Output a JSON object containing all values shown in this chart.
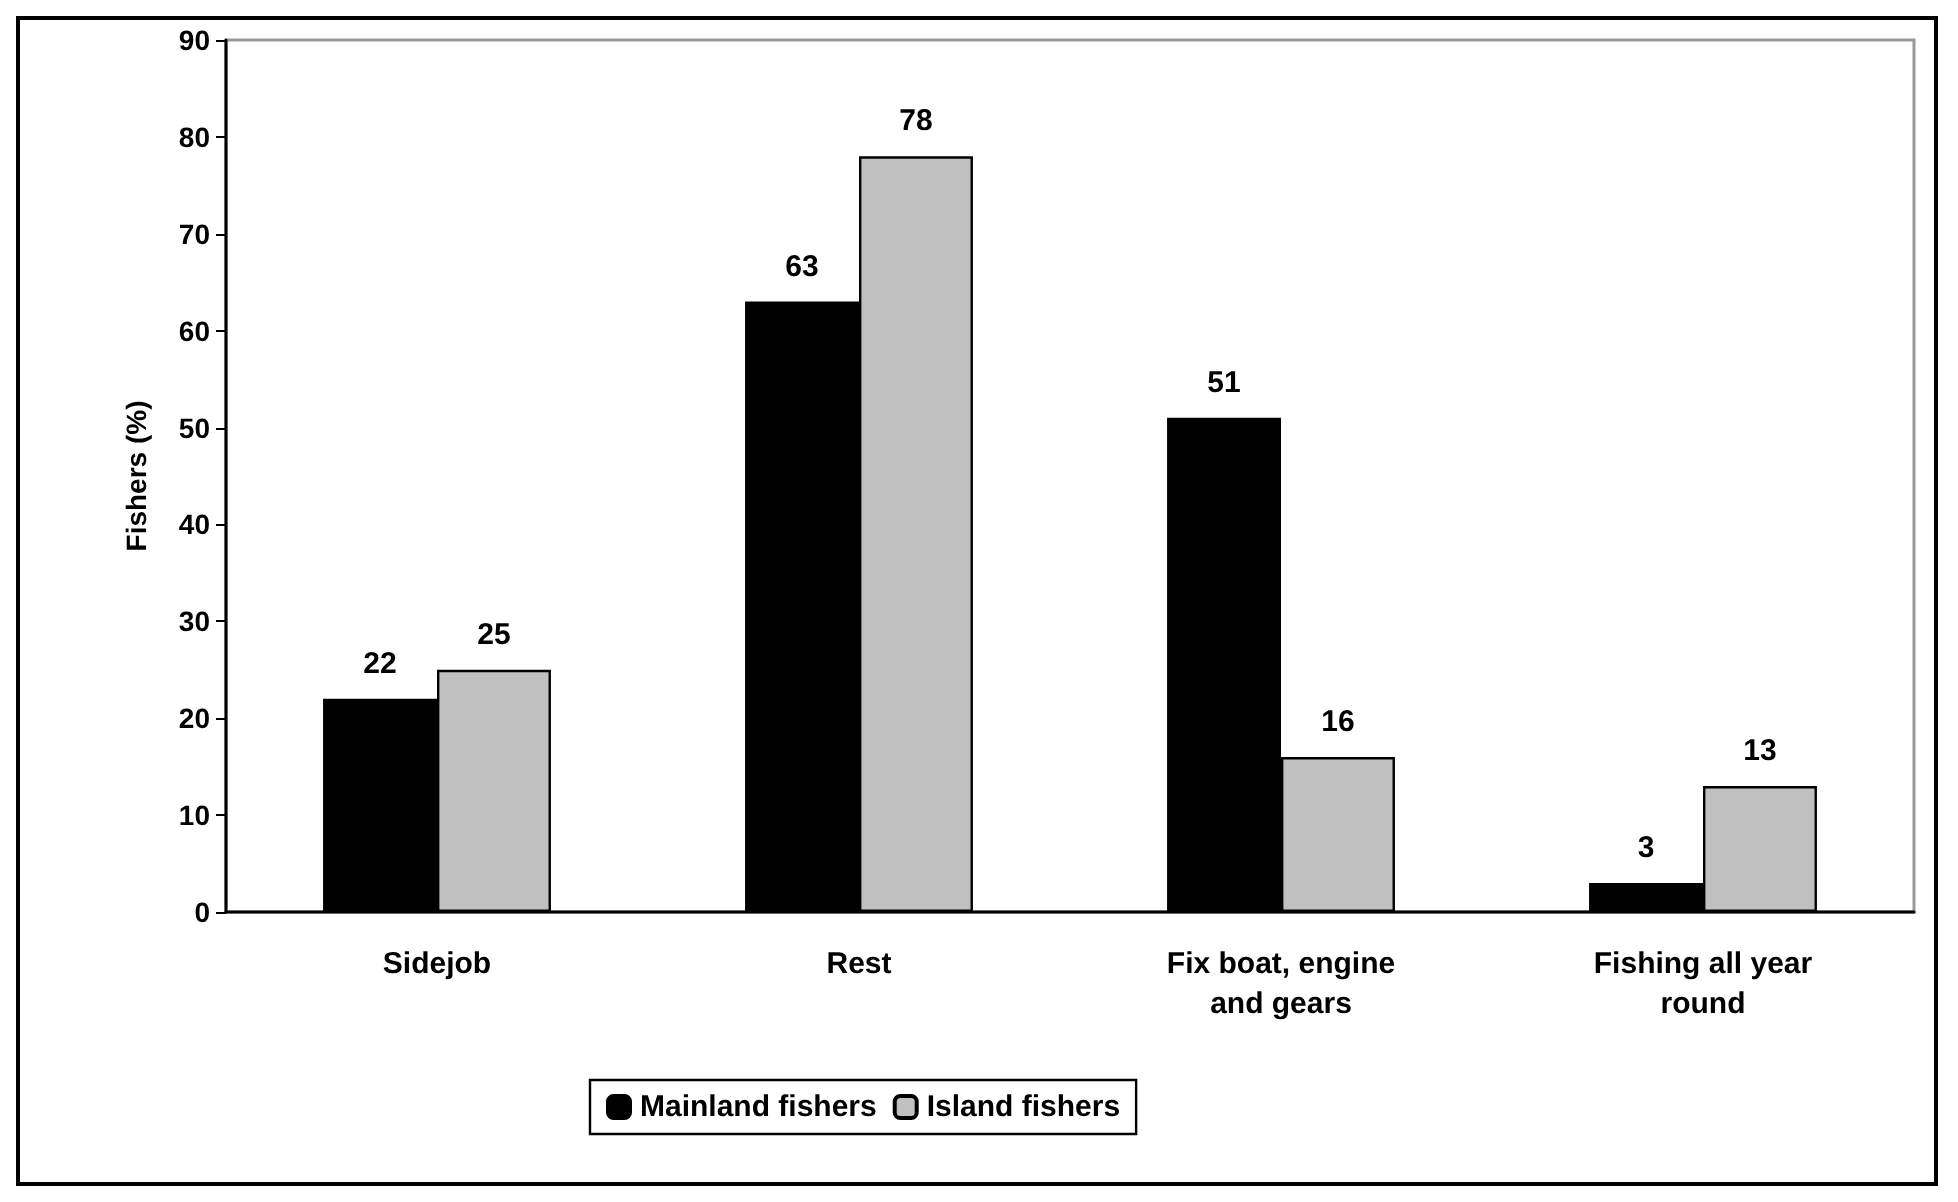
{
  "chart_data": {
    "type": "bar",
    "ylabel": "Fishers (%)",
    "categories": [
      "Sidejob",
      "Rest",
      "Fix boat, engine\nand gears",
      "Fishing all year\nround"
    ],
    "series": [
      {
        "name": "Mainland fishers",
        "color": "#000000",
        "values": [
          22,
          63,
          51,
          3
        ]
      },
      {
        "name": "Island fishers",
        "color": "#c0c0c0",
        "values": [
          25,
          78,
          16,
          13
        ]
      }
    ],
    "ylim": [
      0,
      90
    ],
    "yticks": [
      0,
      10,
      20,
      30,
      40,
      50,
      60,
      70,
      80,
      90
    ],
    "grid": false,
    "legend": "bottom",
    "data_labels": true
  }
}
